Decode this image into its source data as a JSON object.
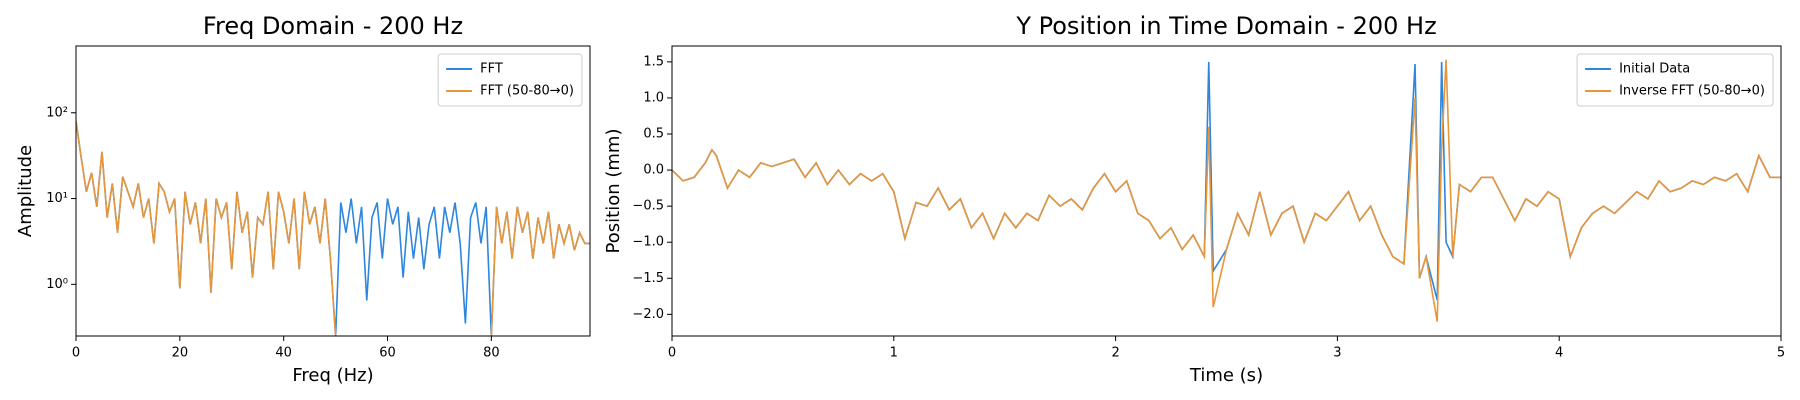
{
  "chart_data": [
    {
      "type": "line",
      "title": "Freq Domain - 200 Hz",
      "xlabel": "Freq (Hz)",
      "ylabel": "Amplitude",
      "yscale": "log",
      "legend": "upper right",
      "xlim": [
        0,
        99
      ],
      "ylim": [
        0.25,
        600
      ],
      "xticks": [
        0,
        20,
        40,
        60,
        80
      ],
      "yticks": [
        {
          "value": 1,
          "label": "10⁰"
        },
        {
          "value": 10,
          "label": "10¹"
        },
        {
          "value": 100,
          "label": "10²"
        }
      ],
      "x": [
        0,
        1,
        2,
        3,
        4,
        5,
        6,
        7,
        8,
        9,
        10,
        11,
        12,
        13,
        14,
        15,
        16,
        17,
        18,
        19,
        20,
        21,
        22,
        23,
        24,
        25,
        26,
        27,
        28,
        29,
        30,
        31,
        32,
        33,
        34,
        35,
        36,
        37,
        38,
        39,
        40,
        41,
        42,
        43,
        44,
        45,
        46,
        47,
        48,
        49,
        50,
        51,
        52,
        53,
        54,
        55,
        56,
        57,
        58,
        59,
        60,
        61,
        62,
        63,
        64,
        65,
        66,
        67,
        68,
        69,
        70,
        71,
        72,
        73,
        74,
        75,
        76,
        77,
        78,
        79,
        80,
        81,
        82,
        83,
        84,
        85,
        86,
        87,
        88,
        89,
        90,
        91,
        92,
        93,
        94,
        95,
        96,
        97,
        98,
        99
      ],
      "series": [
        {
          "name": "FFT",
          "color": "#2e86de",
          "values": [
            80,
            30,
            12,
            20,
            8,
            35,
            6,
            15,
            4,
            18,
            12,
            8,
            15,
            6,
            10,
            3,
            15,
            12,
            7,
            10,
            0.9,
            12,
            5,
            9,
            3,
            10,
            0.8,
            10,
            6,
            9,
            1.5,
            12,
            4,
            7,
            1.2,
            6,
            5,
            12,
            1.5,
            12,
            7,
            3,
            10,
            1.5,
            12,
            5,
            8,
            3,
            10,
            2,
            0.25,
            9,
            4,
            10,
            3,
            8,
            0.65,
            6,
            9,
            2,
            10,
            5,
            8,
            1.2,
            7,
            2,
            6,
            1.5,
            5,
            8,
            2,
            8,
            4,
            9,
            3,
            0.35,
            6,
            9,
            3,
            8,
            0.25,
            8,
            3,
            7,
            2,
            8,
            4,
            7,
            2,
            6,
            3,
            7,
            2,
            5,
            3,
            5,
            2.5,
            4,
            3,
            3
          ]
        },
        {
          "name": "FFT (50-80→0)",
          "color": "#e8963a",
          "values": [
            80,
            30,
            12,
            20,
            8,
            35,
            6,
            15,
            4,
            18,
            12,
            8,
            15,
            6,
            10,
            3,
            15,
            12,
            7,
            10,
            0.9,
            12,
            5,
            9,
            3,
            10,
            0.8,
            10,
            6,
            9,
            1.5,
            12,
            4,
            7,
            1.2,
            6,
            5,
            12,
            1.5,
            12,
            7,
            3,
            10,
            1.5,
            12,
            5,
            8,
            3,
            10,
            2,
            0.25,
            null,
            null,
            null,
            null,
            null,
            null,
            null,
            null,
            null,
            null,
            null,
            null,
            null,
            null,
            null,
            null,
            null,
            null,
            null,
            null,
            null,
            null,
            null,
            null,
            null,
            null,
            null,
            null,
            null,
            0.25,
            8,
            3,
            7,
            2,
            8,
            4,
            7,
            2,
            6,
            3,
            7,
            2,
            5,
            3,
            5,
            2.5,
            4,
            3,
            3
          ]
        }
      ]
    },
    {
      "type": "line",
      "title": "Y Position in Time Domain - 200 Hz",
      "xlabel": "Time (s)",
      "ylabel": "Position (mm)",
      "legend": "upper right",
      "xlim": [
        0,
        5
      ],
      "ylim": [
        -2.3,
        1.72
      ],
      "xticks": [
        0,
        1,
        2,
        3,
        4,
        5
      ],
      "yticks": [
        {
          "value": -2,
          "label": "−2.0"
        },
        {
          "value": -1.5,
          "label": "−1.5"
        },
        {
          "value": -1,
          "label": "−1.0"
        },
        {
          "value": -0.5,
          "label": "−0.5"
        },
        {
          "value": 0,
          "label": "0.0"
        },
        {
          "value": 0.5,
          "label": "0.5"
        },
        {
          "value": 1,
          "label": "1.0"
        },
        {
          "value": 1.5,
          "label": "1.5"
        }
      ],
      "x": [
        0,
        0.05,
        0.1,
        0.15,
        0.18,
        0.2,
        0.25,
        0.3,
        0.35,
        0.4,
        0.45,
        0.5,
        0.55,
        0.6,
        0.65,
        0.7,
        0.75,
        0.8,
        0.85,
        0.9,
        0.95,
        1.0,
        1.05,
        1.1,
        1.15,
        1.2,
        1.25,
        1.3,
        1.35,
        1.4,
        1.45,
        1.5,
        1.55,
        1.6,
        1.65,
        1.7,
        1.75,
        1.8,
        1.85,
        1.9,
        1.95,
        2.0,
        2.05,
        2.1,
        2.15,
        2.2,
        2.25,
        2.3,
        2.35,
        2.4,
        2.42,
        2.44,
        2.5,
        2.55,
        2.6,
        2.65,
        2.7,
        2.75,
        2.8,
        2.85,
        2.9,
        2.95,
        3.0,
        3.05,
        3.1,
        3.15,
        3.2,
        3.25,
        3.3,
        3.35,
        3.37,
        3.4,
        3.45,
        3.47,
        3.49,
        3.52,
        3.55,
        3.6,
        3.65,
        3.7,
        3.75,
        3.8,
        3.85,
        3.9,
        3.95,
        4.0,
        4.05,
        4.1,
        4.15,
        4.2,
        4.25,
        4.3,
        4.35,
        4.4,
        4.45,
        4.5,
        4.55,
        4.6,
        4.65,
        4.7,
        4.75,
        4.8,
        4.85,
        4.9,
        4.95,
        5.0
      ],
      "series": [
        {
          "name": "Initial Data",
          "color": "#2e86de",
          "values": [
            0,
            -0.15,
            -0.1,
            0.1,
            0.28,
            0.2,
            -0.25,
            0,
            -0.1,
            0.1,
            0.05,
            0.1,
            0.15,
            -0.1,
            0.1,
            -0.2,
            0,
            -0.2,
            -0.05,
            -0.15,
            -0.05,
            -0.3,
            -0.95,
            -0.45,
            -0.5,
            -0.25,
            -0.55,
            -0.4,
            -0.8,
            -0.6,
            -0.95,
            -0.6,
            -0.8,
            -0.6,
            -0.7,
            -0.35,
            -0.5,
            -0.4,
            -0.55,
            -0.25,
            -0.05,
            -0.3,
            -0.15,
            -0.6,
            -0.7,
            -0.95,
            -0.8,
            -1.1,
            -0.9,
            -1.2,
            1.5,
            -1.4,
            -1.1,
            -0.6,
            -0.9,
            -0.3,
            -0.9,
            -0.6,
            -0.5,
            -1.0,
            -0.6,
            -0.7,
            -0.5,
            -0.3,
            -0.7,
            -0.5,
            -0.9,
            -1.2,
            -1.3,
            1.47,
            -1.5,
            -1.2,
            -1.8,
            1.5,
            -1.0,
            -1.2,
            -0.2,
            -0.3,
            -0.1,
            -0.1,
            -0.4,
            -0.7,
            -0.4,
            -0.5,
            -0.3,
            -0.4,
            -1.2,
            -0.8,
            -0.6,
            -0.5,
            -0.6,
            -0.45,
            -0.3,
            -0.4,
            -0.15,
            -0.3,
            -0.25,
            -0.15,
            -0.2,
            -0.1,
            -0.15,
            -0.05,
            -0.3,
            0.2,
            -0.1,
            -0.1
          ]
        },
        {
          "name": "Inverse FFT (50-80→0)",
          "color": "#e8963a",
          "values": [
            0,
            -0.15,
            -0.1,
            0.1,
            0.28,
            0.2,
            -0.25,
            0,
            -0.1,
            0.1,
            0.05,
            0.1,
            0.15,
            -0.1,
            0.1,
            -0.2,
            0,
            -0.2,
            -0.05,
            -0.15,
            -0.05,
            -0.3,
            -0.95,
            -0.45,
            -0.5,
            -0.25,
            -0.55,
            -0.4,
            -0.8,
            -0.6,
            -0.95,
            -0.6,
            -0.8,
            -0.6,
            -0.7,
            -0.35,
            -0.5,
            -0.4,
            -0.55,
            -0.25,
            -0.05,
            -0.3,
            -0.15,
            -0.6,
            -0.7,
            -0.95,
            -0.8,
            -1.1,
            -0.9,
            -1.2,
            0.6,
            -1.9,
            -1.1,
            -0.6,
            -0.9,
            -0.3,
            -0.9,
            -0.6,
            -0.5,
            -1.0,
            -0.6,
            -0.7,
            -0.5,
            -0.3,
            -0.7,
            -0.5,
            -0.9,
            -1.2,
            -1.3,
            1.0,
            -1.5,
            -1.2,
            -2.1,
            0.3,
            1.53,
            -1.2,
            -0.2,
            -0.3,
            -0.1,
            -0.1,
            -0.4,
            -0.7,
            -0.4,
            -0.5,
            -0.3,
            -0.4,
            -1.2,
            -0.8,
            -0.6,
            -0.5,
            -0.6,
            -0.45,
            -0.3,
            -0.4,
            -0.15,
            -0.3,
            -0.25,
            -0.15,
            -0.2,
            -0.1,
            -0.15,
            -0.05,
            -0.3,
            0.2,
            -0.1,
            -0.1
          ]
        }
      ]
    }
  ]
}
